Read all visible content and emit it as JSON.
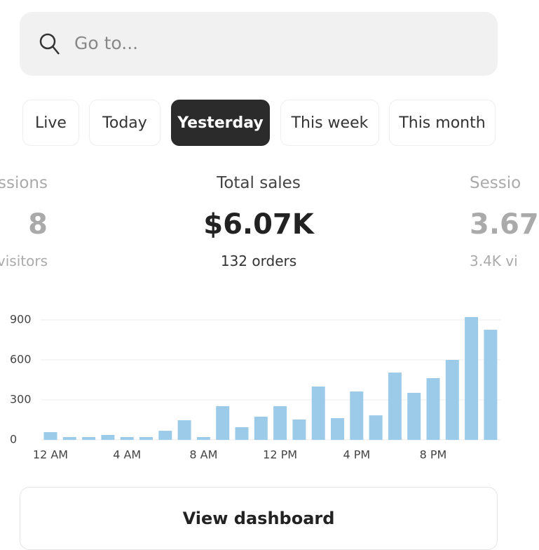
{
  "search": {
    "placeholder": "Go to..."
  },
  "tabs": [
    "Live",
    "Today",
    "Yesterday",
    "This week",
    "This month"
  ],
  "active_tab": 2,
  "stats": [
    {
      "label": "ssions",
      "value": "8",
      "sub": "visitors"
    },
    {
      "label": "Total sales",
      "value": "$6.07K",
      "sub": "132 orders"
    },
    {
      "label": "Sessio",
      "value": "3.67",
      "sub": "3.4K vi"
    }
  ],
  "chart_data": {
    "type": "bar",
    "categories": [
      "12 AM",
      null,
      null,
      null,
      "4 AM",
      null,
      null,
      null,
      "8 AM",
      null,
      null,
      null,
      "12 PM",
      null,
      null,
      null,
      "4 PM",
      null,
      null,
      null,
      "8 PM",
      null,
      null,
      null
    ],
    "values": [
      58,
      21,
      21,
      37,
      21,
      21,
      68,
      147,
      21,
      253,
      95,
      174,
      253,
      153,
      400,
      163,
      363,
      184,
      505,
      353,
      463,
      600,
      921,
      826
    ],
    "color": "#9ccbea",
    "ylim": [
      0,
      950
    ],
    "yticks": [
      0,
      300,
      600,
      900
    ],
    "grid": true
  },
  "button": {
    "label": "View dashboard"
  }
}
